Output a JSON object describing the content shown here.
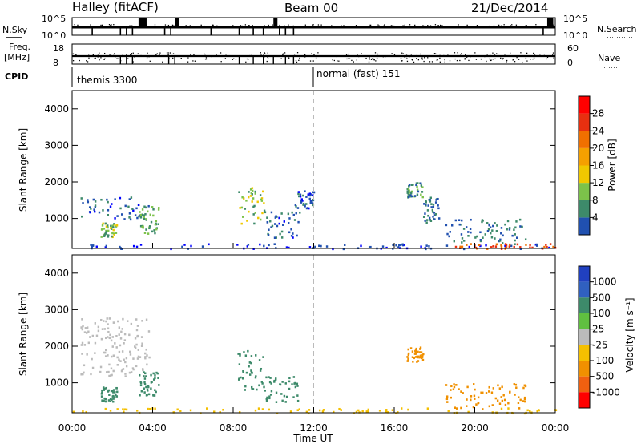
{
  "header": {
    "station": "Halley (fitACF)",
    "beam": "Beam 00",
    "date": "21/Dec/2014"
  },
  "summary_panels": {
    "nsky_label": "N.Sky",
    "nsearch_label": "N.Search",
    "count_ticks_left": [
      "10^5",
      "10^0"
    ],
    "count_ticks_right": [
      "10^5",
      "10^0"
    ],
    "freq_label": "Freq.",
    "freq_unit": "[MHz]",
    "freq_ticks": [
      "18",
      "8"
    ],
    "nave_label": "Nave",
    "nave_ticks": [
      "60",
      "0"
    ],
    "cpid_label": "CPID",
    "cpid_segments": [
      {
        "name": "themis 3300",
        "start_hour": 0
      },
      {
        "name": "normal (fast) 151",
        "start_hour": 12
      }
    ]
  },
  "colors": {
    "power_scale": [
      "#0000ff",
      "#2050b0",
      "#3d8a6a",
      "#7cc24a",
      "#f0c800",
      "#f5a000",
      "#f07000",
      "#e83010",
      "#ff0000"
    ],
    "velocity_scale": [
      "#2040c0",
      "#3060c0",
      "#3d8a6a",
      "#60c040",
      "#bbbbbb",
      "#f5c000",
      "#f09000",
      "#f06010",
      "#ff0000"
    ],
    "divider": "#bbbbbb"
  },
  "chart_data": [
    {
      "type": "heatmap",
      "name": "power-panel",
      "ylabel": "Slant Range [km]",
      "yticks": [
        "1000",
        "2000",
        "3000",
        "4000"
      ],
      "ylim": [
        180,
        4500
      ],
      "xlim": [
        0,
        24
      ],
      "colorbar": {
        "label": "Power [dB]",
        "ticks": [
          "4",
          "8",
          "12",
          "16",
          "20",
          "24",
          "28"
        ],
        "range": [
          0,
          32
        ]
      },
      "echo_regions": [
        {
          "t0": 0.0,
          "t1": 24.0,
          "r0": 190,
          "r1": 330,
          "value": 4
        },
        {
          "t0": 19.0,
          "t1": 24.0,
          "r0": 190,
          "r1": 330,
          "value": 28
        },
        {
          "t0": 0.4,
          "t1": 3.8,
          "r0": 1000,
          "r1": 1600,
          "value": 6
        },
        {
          "t0": 1.4,
          "t1": 2.2,
          "r0": 500,
          "r1": 900,
          "value": 14
        },
        {
          "t0": 3.3,
          "t1": 4.3,
          "r0": 600,
          "r1": 1350,
          "value": 12
        },
        {
          "t0": 8.2,
          "t1": 9.6,
          "r0": 800,
          "r1": 1900,
          "value": 14
        },
        {
          "t0": 9.6,
          "t1": 11.3,
          "r0": 500,
          "r1": 1200,
          "value": 6
        },
        {
          "t0": 11.0,
          "t1": 12.0,
          "r0": 1300,
          "r1": 1800,
          "value": 6
        },
        {
          "t0": 16.6,
          "t1": 17.4,
          "r0": 1600,
          "r1": 2000,
          "value": 10
        },
        {
          "t0": 17.4,
          "t1": 18.2,
          "r0": 900,
          "r1": 1600,
          "value": 8
        },
        {
          "t0": 18.5,
          "t1": 22.5,
          "r0": 300,
          "r1": 1000,
          "value": 8
        }
      ]
    },
    {
      "type": "heatmap",
      "name": "velocity-panel",
      "ylabel": "Slant Range [km]",
      "yticks": [
        "1000",
        "2000",
        "3000",
        "4000"
      ],
      "ylim": [
        180,
        4500
      ],
      "xlim": [
        0,
        24
      ],
      "colorbar": {
        "label": "Velocity [m s⁻¹]",
        "ticks": [
          "1000",
          "500",
          "100",
          "25",
          "-25",
          "-100",
          "-500",
          "-1000"
        ]
      },
      "echo_regions": [
        {
          "t0": 0.4,
          "t1": 3.8,
          "r0": 1200,
          "r1": 2800,
          "value": 0
        },
        {
          "t0": 1.4,
          "t1": 2.2,
          "r0": 500,
          "r1": 900,
          "value": 200
        },
        {
          "t0": 3.3,
          "t1": 4.3,
          "r0": 600,
          "r1": 1350,
          "value": 300
        },
        {
          "t0": 8.2,
          "t1": 9.6,
          "r0": 800,
          "r1": 1900,
          "value": 300
        },
        {
          "t0": 9.6,
          "t1": 11.3,
          "r0": 500,
          "r1": 1200,
          "value": 150
        },
        {
          "t0": 16.6,
          "t1": 17.4,
          "r0": 1600,
          "r1": 2000,
          "value": -200
        },
        {
          "t0": 18.5,
          "t1": 22.5,
          "r0": 300,
          "r1": 1000,
          "value": -300
        },
        {
          "t0": 0.0,
          "t1": 24.0,
          "r0": 190,
          "r1": 330,
          "value": -60
        }
      ]
    }
  ],
  "time_axis": {
    "label": "Time UT",
    "ticks": [
      "00:00",
      "04:00",
      "08:00",
      "12:00",
      "16:00",
      "20:00",
      "00:00"
    ]
  }
}
